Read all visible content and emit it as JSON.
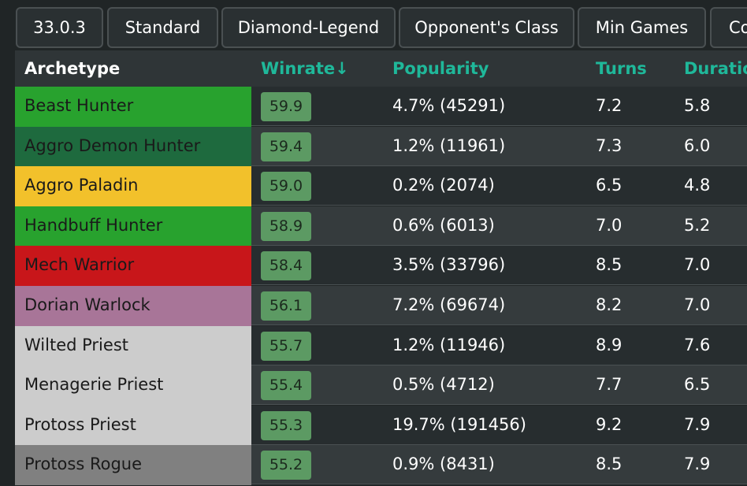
{
  "filters": [
    "33.0.3",
    "Standard",
    "Diamond-Legend",
    "Opponent's Class",
    "Min Games",
    "Co"
  ],
  "table": {
    "headers": {
      "archetype": "Archetype",
      "winrate": "Winrate↓",
      "popularity": "Popularity",
      "turns": "Turns",
      "duration": "Duratio"
    },
    "rows": [
      {
        "name": "Beast Hunter",
        "color": "#28a22e",
        "text_color": "#1a1a1a",
        "winrate": "59.9",
        "popularity": "4.7% (45291)",
        "turns": "7.2",
        "duration": "5.8"
      },
      {
        "name": "Aggro Demon Hunter",
        "color": "#1e6a3e",
        "text_color": "#1a1a1a",
        "winrate": "59.4",
        "popularity": "1.2% (11961)",
        "turns": "7.3",
        "duration": "6.0"
      },
      {
        "name": "Aggro Paladin",
        "color": "#f2c12b",
        "text_color": "#1a1a1a",
        "winrate": "59.0",
        "popularity": "0.2% (2074)",
        "turns": "6.5",
        "duration": "4.8"
      },
      {
        "name": "Handbuff Hunter",
        "color": "#28a22e",
        "text_color": "#1a1a1a",
        "winrate": "58.9",
        "popularity": "0.6% (6013)",
        "turns": "7.0",
        "duration": "5.2"
      },
      {
        "name": "Mech Warrior",
        "color": "#c8161a",
        "text_color": "#1a1a1a",
        "winrate": "58.4",
        "popularity": "3.5% (33796)",
        "turns": "8.5",
        "duration": "7.0"
      },
      {
        "name": "Dorian Warlock",
        "color": "#a87598",
        "text_color": "#1a1a1a",
        "winrate": "56.1",
        "popularity": "7.2% (69674)",
        "turns": "8.2",
        "duration": "7.0"
      },
      {
        "name": "Wilted Priest",
        "color": "#cccccc",
        "text_color": "#1a1a1a",
        "winrate": "55.7",
        "popularity": "1.2% (11946)",
        "turns": "8.9",
        "duration": "7.6"
      },
      {
        "name": "Menagerie Priest",
        "color": "#cccccc",
        "text_color": "#1a1a1a",
        "winrate": "55.4",
        "popularity": "0.5% (4712)",
        "turns": "7.7",
        "duration": "6.5"
      },
      {
        "name": "Protoss Priest",
        "color": "#cccccc",
        "text_color": "#1a1a1a",
        "winrate": "55.3",
        "popularity": "19.7% (191456)",
        "turns": "9.2",
        "duration": "7.9"
      },
      {
        "name": "Protoss Rogue",
        "color": "#808080",
        "text_color": "#1a1a1a",
        "winrate": "55.2",
        "popularity": "0.9% (8431)",
        "turns": "8.5",
        "duration": "7.9"
      }
    ]
  }
}
